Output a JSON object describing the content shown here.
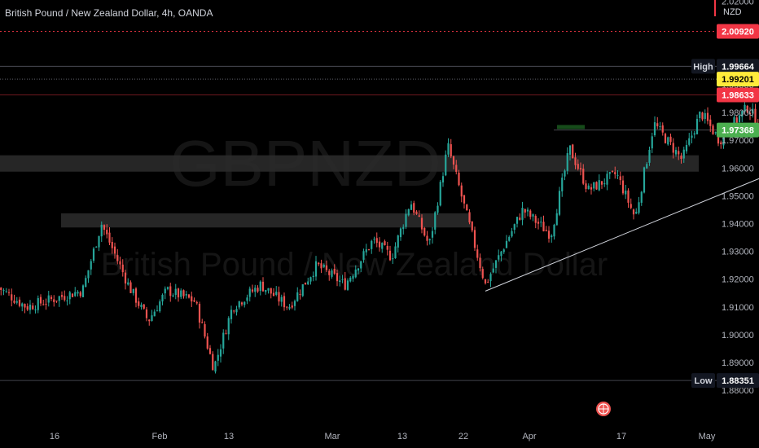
{
  "header": {
    "title": "British Pound / New Zealand Dollar, 4h, OANDA",
    "currency": "NZD"
  },
  "watermark": {
    "symbol": "GBPNZD",
    "description": "British Pound / New Zealand Dollar"
  },
  "colors": {
    "background": "#000000",
    "up_candle": "#26a69a",
    "down_candle": "#ef5350",
    "red_tag": "#f23645",
    "yellow_tag": "#ffeb3b",
    "green_tag": "#4caf50",
    "high_low_tag": "#131722"
  },
  "tags": {
    "target": "2.00920",
    "high_label": "High",
    "high": "1.99664",
    "current": "1.99201",
    "red_level": "1.98633",
    "support": "1.97368",
    "low_label": "Low",
    "low": "1.88351"
  },
  "chart_data": {
    "type": "candlestick",
    "y_axis": {
      "range": [
        1.878,
        2.028
      ],
      "ticks": [
        "2.02000",
        "1.99000",
        "1.98000",
        "1.97000",
        "1.96000",
        "1.95000",
        "1.94000",
        "1.93000",
        "1.92000",
        "1.91000",
        "1.90000",
        "1.89000",
        "1.88000"
      ]
    },
    "x_axis": {
      "ticks": [
        "16",
        "Feb",
        "13",
        "Mar",
        "13",
        "22",
        "Apr",
        "17",
        "May"
      ]
    },
    "price_path": [
      [
        "Jan 10",
        1.917
      ],
      [
        "Jan 13",
        1.91
      ],
      [
        "Jan 16",
        1.913
      ],
      [
        "Jan 19",
        1.916
      ],
      [
        "Jan 21",
        1.94
      ],
      [
        "Jan 24",
        1.917
      ],
      [
        "Jan 26",
        1.905
      ],
      [
        "Jan 28",
        1.916
      ],
      [
        "Jan 31",
        1.912
      ],
      [
        "Feb 02",
        1.888
      ],
      [
        "Feb 04",
        1.91
      ],
      [
        "Feb 07",
        1.918
      ],
      [
        "Feb 10",
        1.91
      ],
      [
        "Feb 13",
        1.925
      ],
      [
        "Feb 16",
        1.918
      ],
      [
        "Feb 19",
        1.934
      ],
      [
        "Feb 21",
        1.928
      ],
      [
        "Feb 23",
        1.948
      ],
      [
        "Feb 25",
        1.932
      ],
      [
        "Feb 27",
        1.968
      ],
      [
        "Mar 01",
        1.943
      ],
      [
        "Mar 03",
        1.918
      ],
      [
        "Mar 05",
        1.932
      ],
      [
        "Mar 07",
        1.945
      ],
      [
        "Mar 10",
        1.936
      ],
      [
        "Mar 12",
        1.967
      ],
      [
        "Mar 14",
        1.952
      ],
      [
        "Mar 17",
        1.958
      ],
      [
        "Mar 19",
        1.942
      ],
      [
        "Mar 21",
        1.976
      ],
      [
        "Mar 24",
        1.963
      ],
      [
        "Mar 26",
        1.98
      ],
      [
        "Mar 28",
        1.97
      ],
      [
        "Mar 31",
        1.982
      ],
      [
        "Apr 02",
        1.972
      ],
      [
        "Apr 04",
        1.975
      ],
      [
        "Apr 06",
        1.993
      ],
      [
        "Apr 07",
        1.986
      ]
    ],
    "annotations": [
      {
        "type": "horizontal_line",
        "label": "target",
        "y": 2.0092
      },
      {
        "type": "horizontal_line",
        "label": "high",
        "y": 1.99664
      },
      {
        "type": "horizontal_line",
        "label": "current",
        "y": 1.99201
      },
      {
        "type": "horizontal_line",
        "label": "red_level",
        "y": 1.98633
      },
      {
        "type": "horizontal_line",
        "label": "support",
        "y": 1.97368
      },
      {
        "type": "horizontal_line",
        "label": "low",
        "y": 1.88351
      },
      {
        "type": "zone",
        "y": [
          1.9587,
          1.9646
        ]
      },
      {
        "type": "zone",
        "y": [
          1.9386,
          1.9437
        ]
      },
      {
        "type": "trendline",
        "from": [
          "Mar 03",
          1.9157
        ],
        "to": [
          "Apr 22",
          1.985
        ]
      },
      {
        "type": "projection",
        "points": [
          [
            "Apr 11",
            1.9755
          ],
          [
            "Apr 13",
            1.981
          ],
          [
            "Apr 15",
            1.975
          ],
          [
            "Apr 20",
            2.0092
          ]
        ]
      }
    ],
    "legend": "none",
    "grid": false
  }
}
